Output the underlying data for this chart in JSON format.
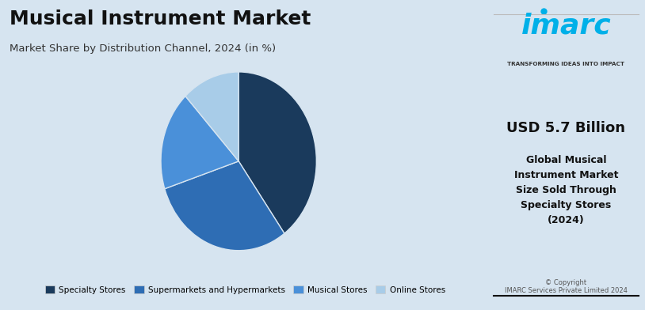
{
  "title": "Musical Instrument Market",
  "subtitle": "Market Share by Distribution Channel, 2024 (in %)",
  "slices": [
    40,
    30,
    18,
    12
  ],
  "labels": [
    "Specialty Stores",
    "Supermarkets and Hypermarkets",
    "Musical Stores",
    "Online Stores"
  ],
  "colors": [
    "#1a3a5c",
    "#2e6db4",
    "#4a90d9",
    "#a8cce8"
  ],
  "background_color": "#d6e4f0",
  "right_panel_bg": "#e8f0f8",
  "usd_label": "USD 5.7 Billion",
  "desc_label": "Global Musical\nInstrument Market\nSize Sold Through\nSpecialty Stores\n(2024)",
  "copyright": "© Copyright\nIMARC Services Private Limited 2024",
  "imarc_text": "imarc",
  "imarc_tagline": "TRANSFORMING IDEAS INTO IMPACT",
  "startangle": 90
}
